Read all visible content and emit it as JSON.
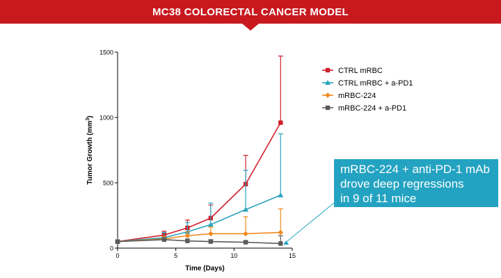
{
  "header": {
    "title": "MC38 COLORECTAL CANCER MODEL"
  },
  "callout": {
    "lines": [
      "mRBC-224 + anti-PD-1 mAb",
      "drove deep regressions",
      "in 9 of 11 mice"
    ]
  },
  "chart_data": {
    "type": "line",
    "xlabel": "Time (Days)",
    "ylabel": "Tumor Growth (mm",
    "ylabel_sup": "3",
    "ylabel_close": ")",
    "xlim": [
      0,
      15
    ],
    "ylim": [
      0,
      1500
    ],
    "xticks": [
      0,
      5,
      10,
      15
    ],
    "yticks": [
      0,
      500,
      1000,
      1500
    ],
    "grid": false,
    "legend_position": "top-right",
    "x": [
      0,
      4,
      6,
      8,
      11,
      14
    ],
    "series": [
      {
        "name": "CTRL mRBC",
        "color": "#d0202a",
        "marker": "square",
        "values": [
          50,
          100,
          155,
          230,
          490,
          960
        ],
        "errors": [
          10,
          30,
          60,
          100,
          220,
          510
        ]
      },
      {
        "name": "CTRL mRBC + a-PD1",
        "color": "#2ba3bd",
        "marker": "triangle",
        "values": [
          50,
          80,
          125,
          180,
          295,
          405
        ],
        "errors": [
          10,
          40,
          70,
          165,
          300,
          470
        ]
      },
      {
        "name": "mRBC-224",
        "color": "#f08a1c",
        "marker": "diamond",
        "values": [
          50,
          70,
          95,
          110,
          110,
          120
        ],
        "errors": [
          10,
          20,
          30,
          50,
          130,
          180
        ]
      },
      {
        "name": "mRBC-224 + a-PD1",
        "color": "#5a5a5a",
        "marker": "square",
        "values": [
          50,
          65,
          55,
          50,
          45,
          35
        ],
        "errors": [
          10,
          10,
          15,
          15,
          10,
          60
        ]
      }
    ]
  }
}
